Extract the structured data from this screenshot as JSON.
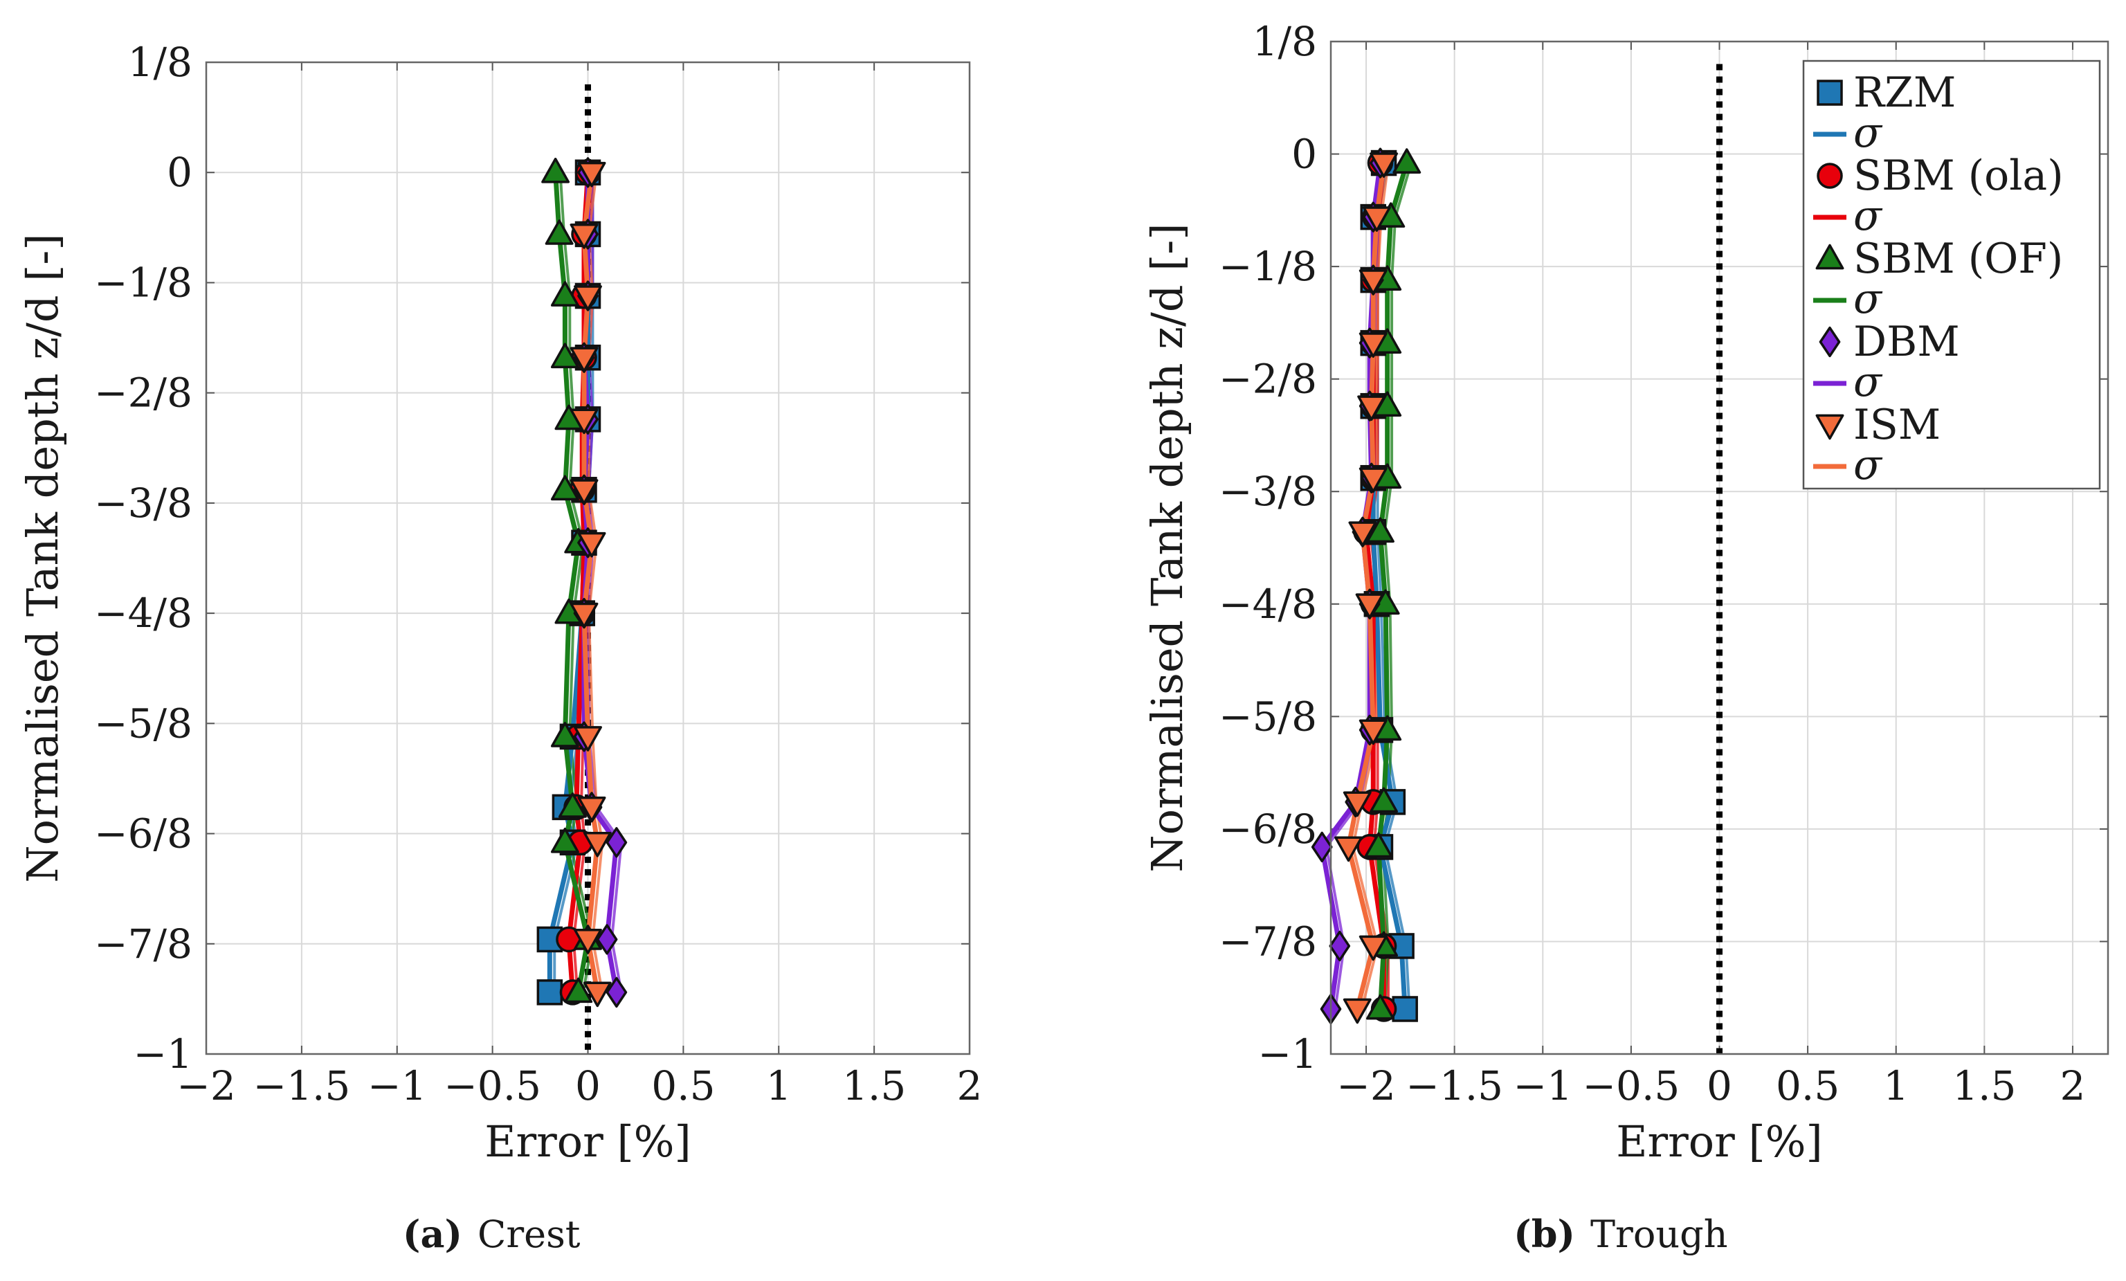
{
  "chart_data": [
    {
      "type": "line",
      "panel_label": "(a)",
      "caption": "Crest",
      "xlabel": "Error [%]",
      "ylabel": "Normalised Tank depth z/d [-]",
      "xlim": [
        -2,
        2
      ],
      "ylim": [
        -1,
        0.125
      ],
      "xticks": [
        -2,
        -1.5,
        -1,
        -0.5,
        0,
        0.5,
        1,
        1.5,
        2
      ],
      "xtick_labels": [
        "−2",
        "−1.5",
        "−1",
        "−0.5",
        "0",
        "0.5",
        "1",
        "1.5",
        "2"
      ],
      "yticks": [
        0.125,
        0,
        -0.125,
        -0.25,
        -0.375,
        -0.5,
        -0.625,
        -0.75,
        -0.875,
        -1
      ],
      "ytick_labels": [
        "1/8",
        "0",
        "−1/8",
        "−2/8",
        "−3/8",
        "−4/8",
        "−5/8",
        "−6/8",
        "−7/8",
        "−1"
      ],
      "grid": true,
      "reference_line_x": 0,
      "series": [
        {
          "name": "RZM",
          "color": "#1f77b4",
          "marker": "square",
          "x": [
            0.0,
            0.0,
            0.0,
            0.0,
            0.0,
            -0.02,
            -0.02,
            -0.03,
            -0.08,
            -0.12,
            -0.08,
            -0.2,
            -0.2
          ],
          "y": [
            0,
            -0.07,
            -0.14,
            -0.21,
            -0.28,
            -0.36,
            -0.42,
            -0.5,
            -0.64,
            -0.72,
            -0.76,
            -0.87,
            -0.93
          ]
        },
        {
          "name": "SBM (ola)",
          "color": "#e8000b",
          "marker": "circle",
          "x": [
            0.0,
            -0.02,
            -0.02,
            -0.02,
            -0.03,
            -0.03,
            -0.02,
            -0.03,
            -0.05,
            -0.06,
            -0.04,
            -0.1,
            -0.08
          ],
          "y": [
            0,
            -0.07,
            -0.14,
            -0.21,
            -0.28,
            -0.36,
            -0.42,
            -0.5,
            -0.64,
            -0.72,
            -0.76,
            -0.87,
            -0.93
          ]
        },
        {
          "name": "SBM (OF)",
          "color": "#1a7f1a",
          "marker": "triangle-up",
          "x": [
            -0.17,
            -0.15,
            -0.12,
            -0.12,
            -0.1,
            -0.12,
            -0.05,
            -0.1,
            -0.12,
            -0.08,
            -0.12,
            0.0,
            -0.05
          ],
          "y": [
            0,
            -0.07,
            -0.14,
            -0.21,
            -0.28,
            -0.36,
            -0.42,
            -0.5,
            -0.64,
            -0.72,
            -0.76,
            -0.87,
            -0.93
          ]
        },
        {
          "name": "DBM",
          "color": "#7b22d4",
          "marker": "diamond",
          "x": [
            0.0,
            0.0,
            0.0,
            -0.02,
            0.0,
            -0.02,
            0.0,
            -0.02,
            -0.02,
            0.02,
            0.15,
            0.1,
            0.15
          ],
          "y": [
            0,
            -0.07,
            -0.14,
            -0.21,
            -0.28,
            -0.36,
            -0.42,
            -0.5,
            -0.64,
            -0.72,
            -0.76,
            -0.87,
            -0.93
          ]
        },
        {
          "name": "ISM",
          "color": "#f26b3a",
          "marker": "triangle-down",
          "x": [
            0.02,
            -0.02,
            0.0,
            -0.02,
            -0.02,
            -0.02,
            0.02,
            -0.02,
            0.0,
            0.02,
            0.05,
            0.0,
            0.05
          ],
          "y": [
            0,
            -0.07,
            -0.14,
            -0.21,
            -0.28,
            -0.36,
            -0.42,
            -0.5,
            -0.64,
            -0.72,
            -0.76,
            -0.87,
            -0.93
          ]
        }
      ]
    },
    {
      "type": "line",
      "panel_label": "(b)",
      "caption": "Trough",
      "xlabel": "Error [%]",
      "ylabel": "Normalised Tank depth z/d [-]",
      "xlim": [
        -2.2,
        2.2
      ],
      "ylim": [
        -1,
        0.125
      ],
      "xticks": [
        -2,
        -1.5,
        -1,
        -0.5,
        0,
        0.5,
        1,
        1.5,
        2
      ],
      "xtick_labels": [
        "−2",
        "−1.5",
        "−1",
        "−0.5",
        "0",
        "0.5",
        "1",
        "1.5",
        "2"
      ],
      "yticks": [
        0.125,
        0,
        -0.125,
        -0.25,
        -0.375,
        -0.5,
        -0.625,
        -0.75,
        -0.875,
        -1
      ],
      "ytick_labels": [
        "1/8",
        "0",
        "−1/8",
        "−2/8",
        "−3/8",
        "−4/8",
        "−5/8",
        "−6/8",
        "−7/8",
        "−1"
      ],
      "grid": true,
      "reference_line_x": 0,
      "series": [
        {
          "name": "RZM",
          "color": "#1f77b4",
          "marker": "square",
          "x": [
            -1.9,
            -1.96,
            -1.96,
            -1.96,
            -1.96,
            -1.96,
            -1.96,
            -1.94,
            -1.92,
            -1.85,
            -1.92,
            -1.8,
            -1.78
          ],
          "y": [
            -0.01,
            -0.07,
            -0.14,
            -0.21,
            -0.28,
            -0.36,
            -0.42,
            -0.5,
            -0.64,
            -0.72,
            -0.77,
            -0.88,
            -0.95
          ]
        },
        {
          "name": "SBM (ola)",
          "color": "#e8000b",
          "marker": "circle",
          "x": [
            -1.92,
            -1.95,
            -1.96,
            -1.96,
            -1.96,
            -1.96,
            -2.0,
            -1.96,
            -1.96,
            -1.96,
            -1.98,
            -1.9,
            -1.9
          ],
          "y": [
            -0.01,
            -0.07,
            -0.14,
            -0.21,
            -0.28,
            -0.36,
            -0.42,
            -0.5,
            -0.64,
            -0.72,
            -0.77,
            -0.88,
            -0.95
          ]
        },
        {
          "name": "SBM (OF)",
          "color": "#1a7f1a",
          "marker": "triangle-up",
          "x": [
            -1.77,
            -1.86,
            -1.88,
            -1.88,
            -1.88,
            -1.88,
            -1.92,
            -1.89,
            -1.88,
            -1.9,
            -1.93,
            -1.9,
            -1.92
          ],
          "y": [
            -0.01,
            -0.07,
            -0.14,
            -0.21,
            -0.28,
            -0.36,
            -0.42,
            -0.5,
            -0.64,
            -0.72,
            -0.77,
            -0.88,
            -0.95
          ]
        },
        {
          "name": "DBM",
          "color": "#7b22d4",
          "marker": "diamond",
          "x": [
            -1.92,
            -1.96,
            -1.96,
            -1.98,
            -1.98,
            -1.97,
            -2.02,
            -1.98,
            -1.98,
            -2.06,
            -2.25,
            -2.15,
            -2.2
          ],
          "y": [
            -0.01,
            -0.07,
            -0.14,
            -0.21,
            -0.28,
            -0.36,
            -0.42,
            -0.5,
            -0.64,
            -0.72,
            -0.77,
            -0.88,
            -0.95
          ]
        },
        {
          "name": "ISM",
          "color": "#f26b3a",
          "marker": "triangle-down",
          "x": [
            -1.9,
            -1.94,
            -1.96,
            -1.96,
            -1.97,
            -1.96,
            -2.02,
            -1.98,
            -1.96,
            -2.05,
            -2.1,
            -1.96,
            -2.05
          ],
          "y": [
            -0.01,
            -0.07,
            -0.14,
            -0.21,
            -0.28,
            -0.36,
            -0.42,
            -0.5,
            -0.64,
            -0.72,
            -0.77,
            -0.88,
            -0.95
          ]
        }
      ],
      "legend": {
        "placement": "top-right",
        "sigma_label": "σ"
      }
    }
  ]
}
